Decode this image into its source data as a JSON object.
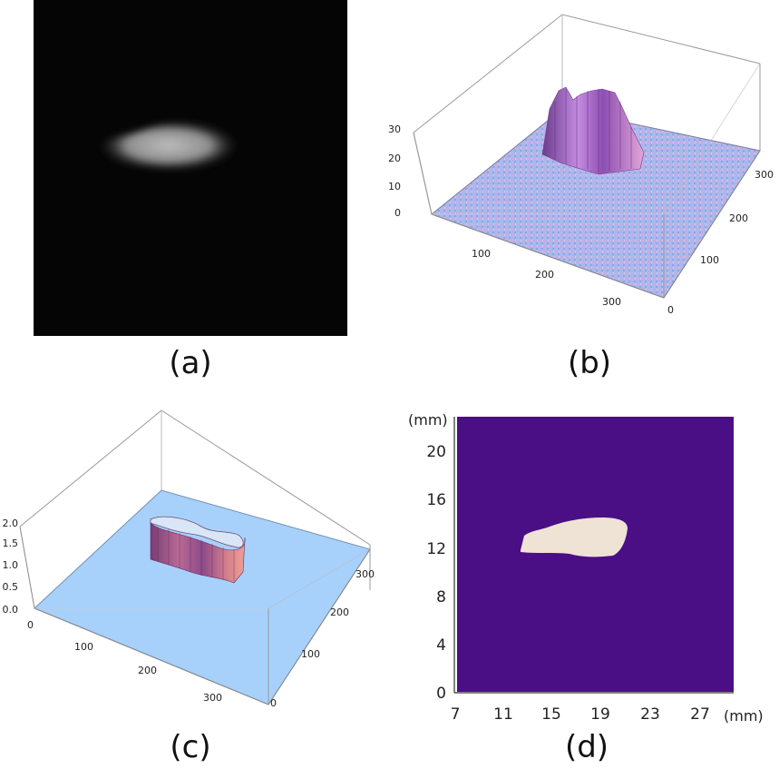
{
  "figure": {
    "panels": [
      {
        "id": "a",
        "caption": "(a)"
      },
      {
        "id": "b",
        "caption": "(b)",
        "z_ticks": [
          "0",
          "10",
          "20",
          "30"
        ],
        "x_ticks": [
          "100",
          "200",
          "300"
        ],
        "y_ticks": [
          "0",
          "100",
          "200",
          "300"
        ]
      },
      {
        "id": "c",
        "caption": "(c)",
        "z_ticks": [
          "0.0",
          "0.5",
          "1.0",
          "1.5",
          "2.0"
        ],
        "x_ticks": [
          "0",
          "100",
          "200",
          "300"
        ],
        "y_ticks": [
          "0",
          "100",
          "200",
          "300"
        ]
      },
      {
        "id": "d",
        "caption": "(d)",
        "y_unit": "(mm)",
        "x_unit": "(mm)",
        "y_ticks": [
          "0",
          "4",
          "8",
          "12",
          "16",
          "20"
        ],
        "x_ticks": [
          "7",
          "11",
          "15",
          "19",
          "23",
          "27"
        ]
      }
    ],
    "colors": {
      "background_a": "#050505",
      "surface_b": "#a9b9ee",
      "surface_c": "#a7d1fb",
      "map_bg_d": "#4a0f85",
      "map_blob_d": "#eee3d5"
    }
  }
}
